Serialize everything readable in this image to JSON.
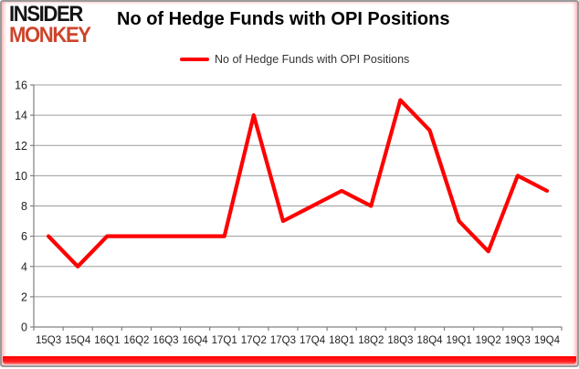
{
  "header": {
    "logo_line1": "INSIDER",
    "logo_line2": "MONKEY",
    "title": "No of Hedge Funds with OPI Positions"
  },
  "legend": {
    "label": "No of Hedge Funds with OPI Positions"
  },
  "colors": {
    "series": "#fe0000",
    "logo_black": "#141414",
    "logo_red": "#cd452c",
    "gridline": "#9c9c9c",
    "axis": "#808080",
    "tick_text": "#1f1f1f",
    "border_gray": "#9b9b9b",
    "border_red": "#fb0000"
  },
  "chart_data": {
    "type": "line",
    "title": "No of Hedge Funds with OPI Positions",
    "xlabel": "",
    "ylabel": "",
    "categories": [
      "15Q3",
      "15Q4",
      "16Q1",
      "16Q2",
      "16Q3",
      "16Q4",
      "17Q1",
      "17Q2",
      "17Q3",
      "17Q4",
      "18Q1",
      "18Q2",
      "18Q3",
      "18Q4",
      "19Q1",
      "19Q2",
      "19Q3",
      "19Q4"
    ],
    "series": [
      {
        "name": "No of Hedge Funds with OPI Positions",
        "color": "#fe0000",
        "values": [
          6,
          4,
          6,
          6,
          6,
          6,
          6,
          14,
          7,
          8,
          9,
          8,
          15,
          13,
          7,
          5,
          10,
          9
        ]
      }
    ],
    "ylim": [
      0,
      16
    ],
    "y_ticks": [
      0,
      2,
      4,
      6,
      8,
      10,
      12,
      14,
      16
    ],
    "grid": true,
    "legend_position": "top-center"
  }
}
